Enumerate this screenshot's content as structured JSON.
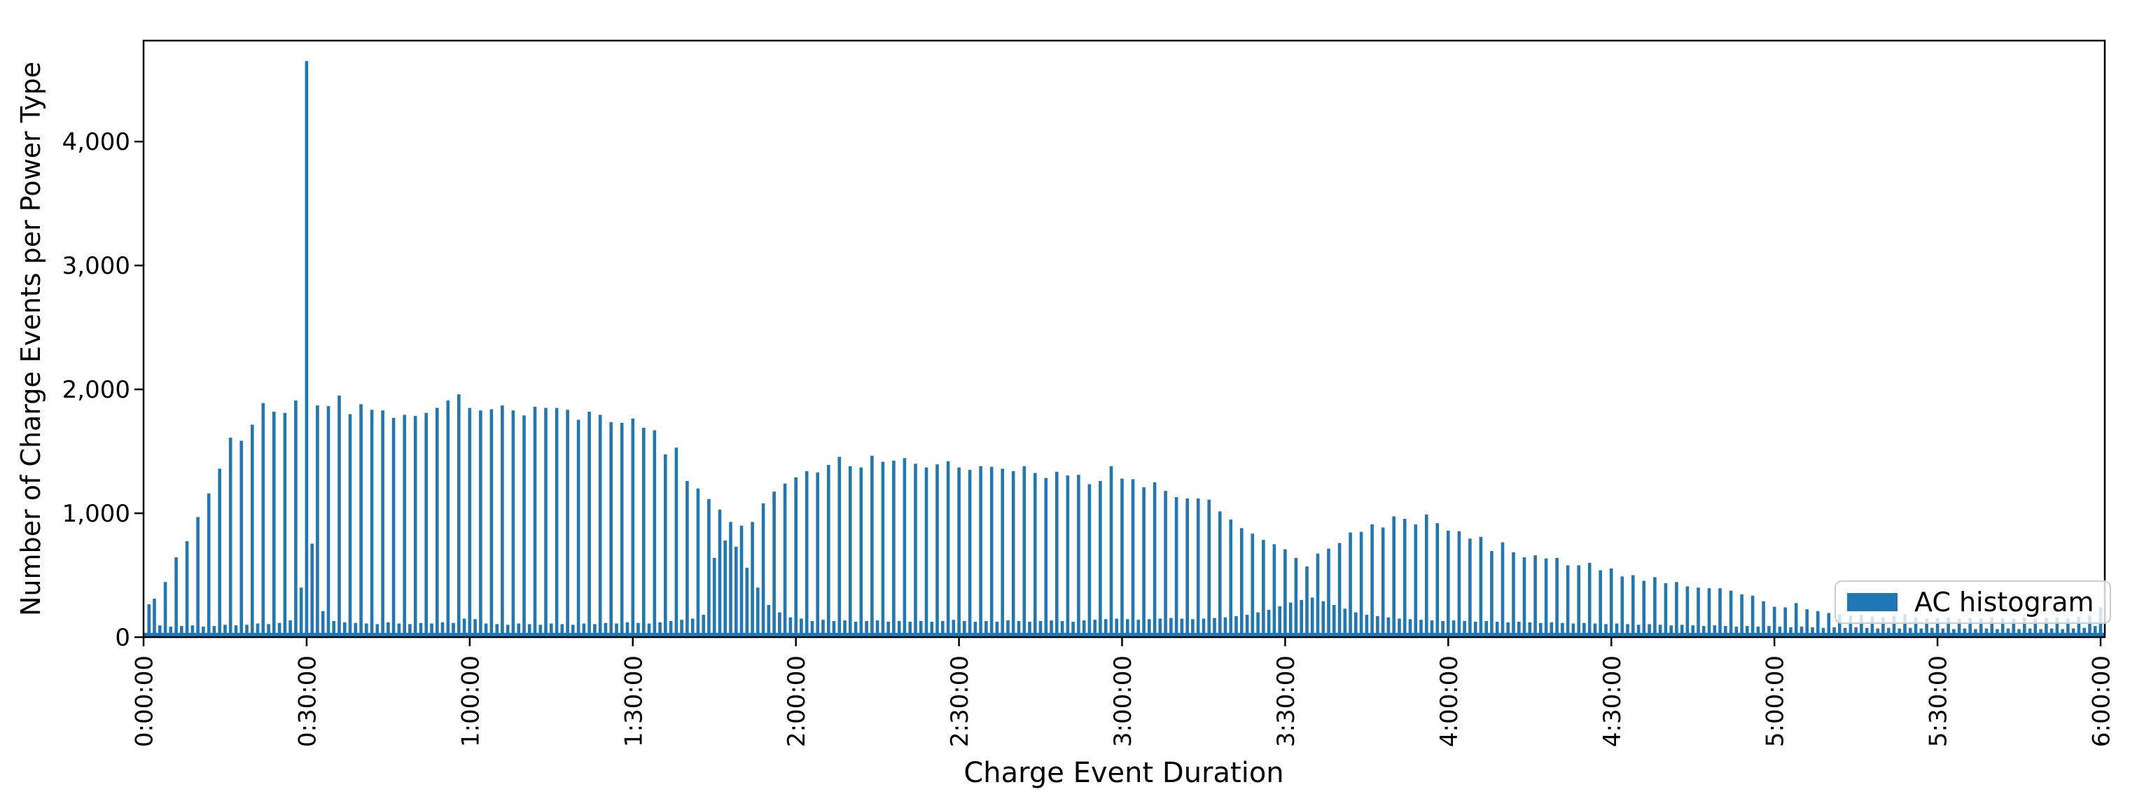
{
  "figure": {
    "background": "#ffffff",
    "bar_color": "#1f77b4",
    "axis_color": "#000000",
    "legend_border_color": "#cccccc"
  },
  "chart_data": {
    "type": "bar",
    "title": "",
    "xlabel": "Charge Event Duration",
    "ylabel": "Number of Charge Events per Power Type",
    "legend": {
      "label": "AC histogram",
      "position": "lower right"
    },
    "grid": false,
    "x_tick_labels": [
      "0:00:00",
      "0:30:00",
      "1:00:00",
      "1:30:00",
      "2:00:00",
      "2:30:00",
      "3:00:00",
      "3:30:00",
      "4:00:00",
      "4:30:00",
      "5:00:00",
      "5:30:00",
      "6:00:00"
    ],
    "x_tick_minutes": [
      0,
      30,
      60,
      90,
      120,
      150,
      180,
      210,
      240,
      270,
      300,
      330,
      360
    ],
    "y_tick_labels": [
      "0",
      "1,000",
      "2,000",
      "3,000",
      "4,000"
    ],
    "y_tick_values": [
      0,
      1000,
      2000,
      3000,
      4000
    ],
    "xlim_minutes": [
      0,
      360.9
    ],
    "ylim": [
      0,
      4815
    ],
    "bin_width_minutes": 1,
    "baseline_level": 35,
    "peak_annotation": {
      "minute": 30,
      "value": 4650
    },
    "values_by_minute": [
      0,
      265,
      310,
      95,
      445,
      85,
      645,
      90,
      775,
      95,
      970,
      85,
      1160,
      90,
      1360,
      100,
      1610,
      95,
      1585,
      100,
      1715,
      110,
      1890,
      105,
      1820,
      115,
      1810,
      135,
      1910,
      400,
      4650,
      755,
      1870,
      210,
      1865,
      130,
      1950,
      120,
      1800,
      115,
      1880,
      110,
      1835,
      105,
      1830,
      120,
      1770,
      110,
      1795,
      105,
      1785,
      115,
      1810,
      110,
      1850,
      120,
      1910,
      115,
      1960,
      150,
      1850,
      145,
      1830,
      110,
      1840,
      105,
      1870,
      100,
      1830,
      110,
      1790,
      105,
      1860,
      100,
      1850,
      110,
      1850,
      105,
      1835,
      100,
      1755,
      110,
      1820,
      105,
      1795,
      115,
      1735,
      110,
      1730,
      120,
      1765,
      115,
      1690,
      110,
      1670,
      120,
      1475,
      130,
      1530,
      140,
      1260,
      150,
      1200,
      180,
      1115,
      640,
      1030,
      780,
      930,
      730,
      900,
      560,
      930,
      400,
      1080,
      260,
      1175,
      200,
      1240,
      160,
      1290,
      150,
      1340,
      130,
      1330,
      140,
      1390,
      130,
      1455,
      135,
      1380,
      125,
      1370,
      130,
      1465,
      135,
      1415,
      125,
      1425,
      130,
      1445,
      125,
      1400,
      130,
      1370,
      125,
      1395,
      130,
      1420,
      140,
      1370,
      130,
      1350,
      125,
      1380,
      130,
      1375,
      125,
      1360,
      135,
      1340,
      130,
      1380,
      125,
      1325,
      130,
      1285,
      135,
      1335,
      130,
      1305,
      125,
      1310,
      135,
      1235,
      140,
      1260,
      145,
      1380,
      150,
      1280,
      145,
      1275,
      140,
      1210,
      145,
      1250,
      150,
      1180,
      155,
      1130,
      150,
      1120,
      145,
      1120,
      150,
      1110,
      155,
      1015,
      160,
      950,
      170,
      880,
      180,
      835,
      200,
      785,
      220,
      750,
      250,
      710,
      280,
      640,
      300,
      570,
      320,
      675,
      290,
      715,
      260,
      760,
      230,
      845,
      200,
      850,
      180,
      910,
      170,
      885,
      160,
      975,
      150,
      955,
      145,
      910,
      140,
      990,
      135,
      920,
      130,
      860,
      135,
      855,
      130,
      795,
      125,
      810,
      130,
      695,
      125,
      765,
      120,
      685,
      125,
      645,
      120,
      660,
      115,
      635,
      120,
      640,
      115,
      580,
      110,
      580,
      115,
      600,
      110,
      540,
      105,
      555,
      110,
      490,
      105,
      500,
      100,
      455,
      105,
      485,
      100,
      435,
      95,
      445,
      100,
      410,
      95,
      400,
      90,
      395,
      95,
      395,
      90,
      375,
      85,
      345,
      90,
      335,
      85,
      290,
      90,
      245,
      85,
      240,
      80,
      275,
      85,
      225,
      80,
      210,
      75,
      195,
      80,
      185,
      75,
      175,
      80,
      180,
      75,
      165,
      70,
      160,
      75,
      170,
      70,
      185,
      75,
      160,
      70,
      150,
      75,
      155,
      70,
      160,
      65,
      150,
      70,
      155,
      65,
      150,
      70,
      160,
      65,
      155,
      70,
      150,
      65,
      160,
      70,
      150,
      65,
      155,
      70,
      160,
      65,
      150,
      70,
      165,
      75,
      175,
      90,
      240
    ]
  }
}
